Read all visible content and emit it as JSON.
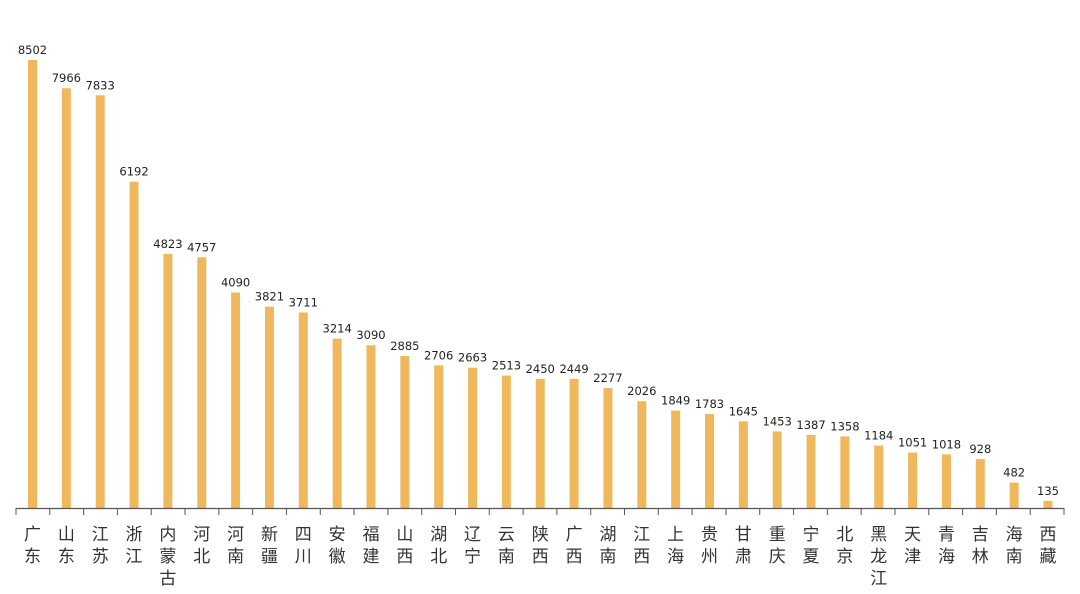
{
  "chart_data": {
    "type": "bar",
    "categories": [
      "广东",
      "山东",
      "江苏",
      "浙江",
      "内蒙古",
      "河北",
      "河南",
      "新疆",
      "四川",
      "安徽",
      "福建",
      "山西",
      "湖北",
      "辽宁",
      "云南",
      "陕西",
      "广西",
      "湖南",
      "江西",
      "上海",
      "贵州",
      "甘肃",
      "重庆",
      "宁夏",
      "北京",
      "黑龙江",
      "天津",
      "青海",
      "吉林",
      "海南",
      "西藏"
    ],
    "values": [
      8502,
      7966,
      7833,
      6192,
      4823,
      4757,
      4090,
      3821,
      3711,
      3214,
      3090,
      2885,
      2706,
      2663,
      2513,
      2450,
      2449,
      2277,
      2026,
      1849,
      1783,
      1645,
      1453,
      1387,
      1358,
      1184,
      1051,
      1018,
      928,
      482,
      135
    ],
    "title": "",
    "xlabel": "",
    "ylabel": "",
    "ylim": [
      0,
      8502
    ],
    "grid": false,
    "legend": "none",
    "data_labels": true,
    "bar_color": "#f0b85c",
    "axis_color": "#555555"
  }
}
